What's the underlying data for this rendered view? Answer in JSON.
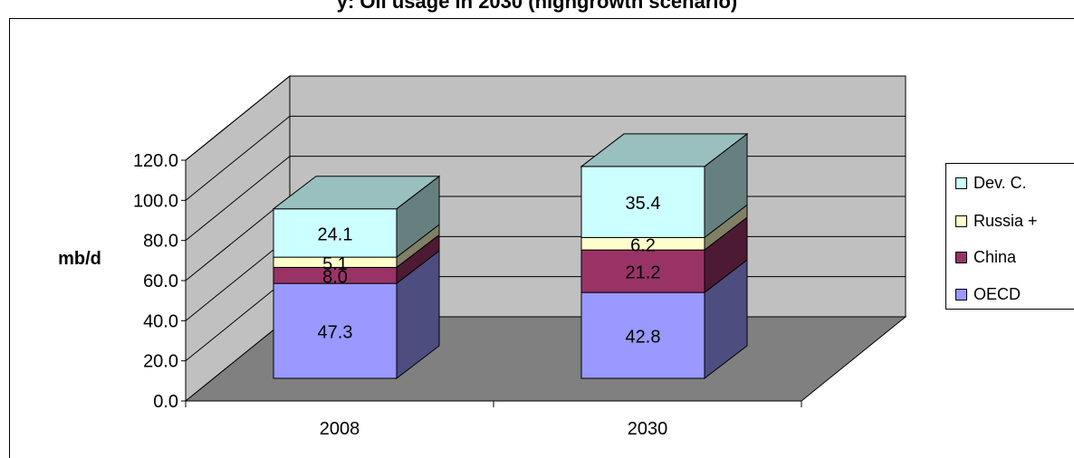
{
  "chart_data": {
    "type": "bar",
    "stacked": true,
    "three_d": true,
    "title": "y: Oil usage in 2030 (highgrowth scenario)",
    "ylabel": "mb/d",
    "xlabel": "",
    "categories": [
      "2008",
      "2030"
    ],
    "ylim": [
      0,
      120
    ],
    "ytick_labels": [
      "0.0",
      "20.0",
      "40.0",
      "60.0",
      "80.0",
      "100.0",
      "120.0"
    ],
    "grid": true,
    "legend_position": "right",
    "series": [
      {
        "name": "OECD",
        "values": [
          47.3,
          42.8
        ],
        "labels": [
          "47.3",
          "42.8"
        ],
        "color": "#9999ff"
      },
      {
        "name": "China",
        "values": [
          8.0,
          21.2
        ],
        "labels": [
          "8.0",
          "21.2"
        ],
        "color": "#993366"
      },
      {
        "name": "Russia +",
        "values": [
          5.1,
          6.2
        ],
        "labels": [
          "5.1",
          "6.2"
        ],
        "color": "#ffffcc"
      },
      {
        "name": "Dev. C.",
        "values": [
          24.1,
          35.4
        ],
        "labels": [
          "24.1",
          "35.4"
        ],
        "color": "#ccffff"
      }
    ]
  }
}
